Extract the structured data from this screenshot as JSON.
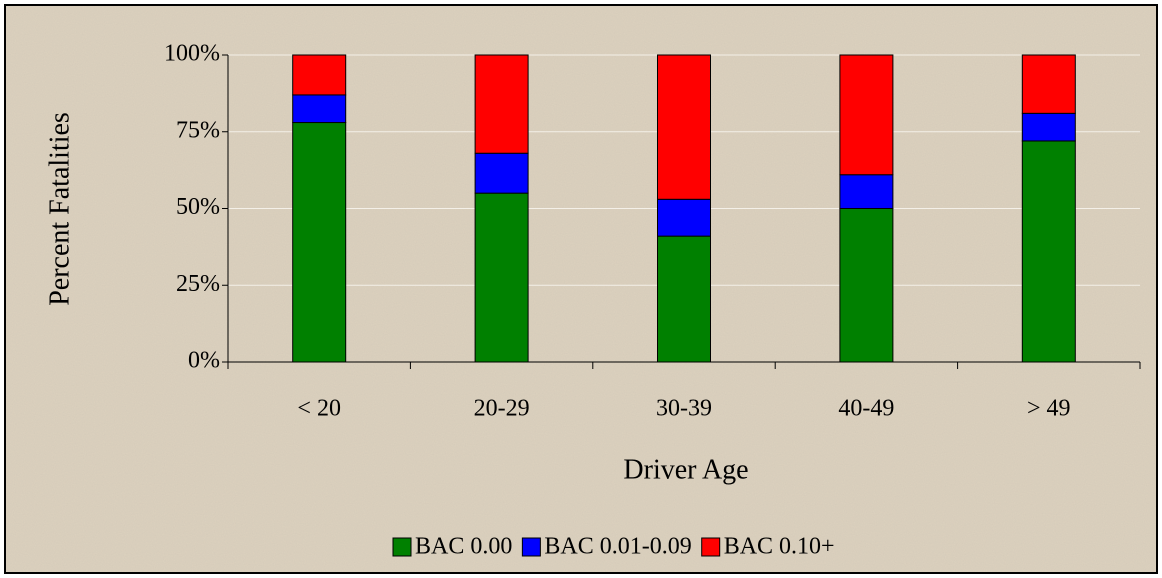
{
  "chart_data": {
    "type": "stacked_bar",
    "categories": [
      "< 20",
      "20-29",
      "30-39",
      "40-49",
      "> 49"
    ],
    "series": [
      {
        "name": "BAC 0.00",
        "color": "#008000",
        "values": [
          78,
          55,
          41,
          50,
          72
        ]
      },
      {
        "name": "BAC 0.01-0.09",
        "color": "#0000ff",
        "values": [
          9,
          13,
          12,
          11,
          9
        ]
      },
      {
        "name": "BAC 0.10+",
        "color": "#ff0000",
        "values": [
          13,
          32,
          47,
          39,
          19
        ]
      }
    ],
    "x_label": "Driver Age",
    "y_label": "Percent Fatalities",
    "ylim": [
      0,
      100
    ],
    "yticks": [
      {
        "value": 0,
        "label": "0%"
      },
      {
        "value": 25,
        "label": "25%"
      },
      {
        "value": 50,
        "label": "50%"
      },
      {
        "value": 75,
        "label": "75%"
      },
      {
        "value": 100,
        "label": "100%"
      }
    ],
    "grid": true,
    "legend": "bottom"
  }
}
